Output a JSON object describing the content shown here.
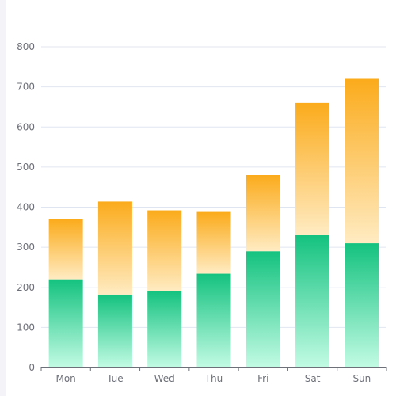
{
  "chart_data": {
    "type": "bar",
    "stacked": true,
    "categories": [
      "Mon",
      "Tue",
      "Wed",
      "Thu",
      "Fri",
      "Sat",
      "Sun"
    ],
    "series": [
      {
        "values": [
          220,
          182,
          191,
          234,
          290,
          330,
          310
        ],
        "color_top": "#14c27f",
        "color_bottom": "#c2fbe4"
      },
      {
        "values": [
          150,
          232,
          201,
          154,
          190,
          330,
          410
        ],
        "color_top": "#fbab1b",
        "color_bottom": "#ffebc2"
      }
    ],
    "ylim": [
      0,
      800
    ],
    "yticks": [
      "0",
      "100",
      "200",
      "300",
      "400",
      "500",
      "600",
      "700",
      "800"
    ],
    "grid": true,
    "legend": "none"
  }
}
